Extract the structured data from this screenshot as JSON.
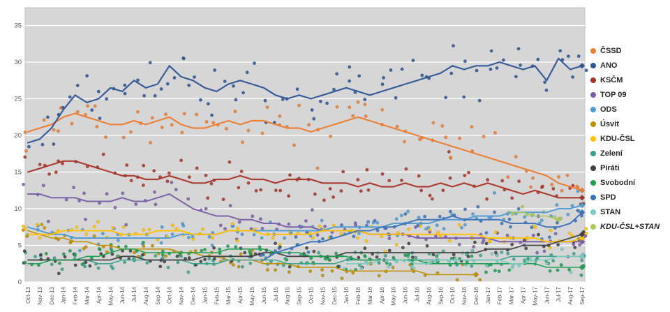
{
  "chart_data": {
    "type": "scatter+line",
    "title": "",
    "xlabel": "",
    "ylabel": "",
    "y_ticks": [
      0,
      5,
      10,
      15,
      20,
      25,
      30,
      35
    ],
    "ylim": [
      0,
      37.4
    ],
    "grid": true,
    "legend_position": "right",
    "plot_bg": "#D6D6D6",
    "grid_color": "#FFFFFF",
    "plot_border": "#C3C3C3",
    "axis_label_color": "#595959",
    "x_labels": [
      "Oct-13",
      "Nov-13",
      "Dec-13",
      "Jan-14",
      "Feb-14",
      "Mar-14",
      "Apr-14",
      "May-14",
      "Jun-14",
      "Jul-14",
      "Aug-14",
      "Sep-14",
      "Oct-14",
      "Nov-14",
      "Dec-14",
      "Jan-15",
      "Feb-15",
      "Mar-15",
      "Apr-15",
      "May-15",
      "Jun-15",
      "Jul-15",
      "Aug-15",
      "Sep-15",
      "Oct-15",
      "Nov-15",
      "Dec-15",
      "Jan-16",
      "Feb-16",
      "Mar-16",
      "Apr-16",
      "May-16",
      "Jun-16",
      "Jul-16",
      "Aug-16",
      "Sep-16",
      "Oct-16",
      "Nov-16",
      "Dec-16",
      "Jan-17",
      "Feb-17",
      "Mar-17",
      "Apr-17",
      "May-17",
      "Jun-17",
      "Jul-17",
      "Aug-17",
      "Sep-17"
    ],
    "series": [
      {
        "name": "ČSSD",
        "color": "#ED7D31",
        "width": 2.2,
        "spread": 2.0,
        "italic": false,
        "values": [
          20.5,
          21,
          21.5,
          22.5,
          23,
          22.5,
          22,
          21.5,
          21.5,
          22,
          21.5,
          22,
          22.5,
          21.5,
          21,
          21,
          21.5,
          22,
          21.5,
          22,
          22,
          21.5,
          21,
          21,
          20.5,
          21,
          21.5,
          22,
          22.5,
          22,
          21.5,
          21,
          20.5,
          20,
          19.5,
          19,
          18.5,
          18,
          17.5,
          17,
          16.5,
          16,
          15.5,
          15,
          14.5,
          13.5,
          13,
          12.5
        ]
      },
      {
        "name": "ANO",
        "color": "#2F5597",
        "width": 2.2,
        "spread": 2.5,
        "italic": false,
        "values": [
          19,
          19.5,
          21,
          23.5,
          25.5,
          24.5,
          25,
          26.5,
          26,
          27.5,
          26.5,
          27,
          29.5,
          28,
          27.5,
          26.5,
          26,
          27,
          27.5,
          27,
          26.5,
          25.5,
          25,
          25.5,
          25,
          25.5,
          26,
          26.5,
          26,
          25.5,
          26,
          26.5,
          27,
          27.5,
          28,
          28.5,
          29.5,
          29,
          29.5,
          29.5,
          30,
          29.5,
          29,
          29.5,
          27.5,
          30.5,
          29,
          29.5
        ]
      },
      {
        "name": "KSČM",
        "color": "#A93529",
        "width": 2.2,
        "spread": 1.8,
        "italic": false,
        "values": [
          15,
          15.5,
          16,
          16.5,
          16.5,
          16,
          15.5,
          15,
          14.5,
          14.5,
          14,
          14,
          14.5,
          14,
          13.5,
          13.5,
          14,
          14,
          14.5,
          14,
          14,
          13.5,
          14,
          14,
          14,
          13.5,
          13.5,
          13.5,
          13,
          13.5,
          13,
          13,
          13.5,
          13,
          13,
          13.5,
          13,
          13.5,
          13,
          13.5,
          13,
          12.5,
          12,
          12.5,
          12,
          11.5,
          11.5,
          11.5
        ]
      },
      {
        "name": "TOP 09",
        "color": "#7B5EA7",
        "width": 2.0,
        "spread": 1.4,
        "italic": false,
        "values": [
          12,
          12,
          11.5,
          11.5,
          11.5,
          11,
          11,
          11,
          11.5,
          11,
          11,
          11.5,
          12,
          11,
          10,
          9.5,
          9,
          9,
          8.5,
          8.5,
          8,
          8,
          7.5,
          7.5,
          7.5,
          7,
          7,
          7,
          7,
          6.5,
          6.5,
          6.5,
          6.5,
          6,
          6,
          6,
          6,
          6,
          6,
          6,
          5.5,
          5.5,
          5.5,
          5.5,
          5.5,
          5.5,
          5.5,
          5.5
        ]
      },
      {
        "name": "ODS",
        "color": "#4E9BD4",
        "width": 2.0,
        "spread": 1.2,
        "italic": false,
        "values": [
          7.5,
          7,
          6.5,
          6.5,
          6,
          6,
          6,
          6,
          6,
          6,
          6,
          6,
          6,
          6.5,
          6.5,
          6.5,
          6.5,
          7,
          7,
          7,
          7,
          7,
          7,
          7,
          7,
          7,
          7.5,
          7.5,
          7.5,
          7.5,
          7.5,
          8,
          8,
          8,
          8,
          8.5,
          8.5,
          8.5,
          9,
          9,
          9,
          9.5,
          9.5,
          9.5,
          9.5,
          10,
          10,
          10.5
        ]
      },
      {
        "name": "Úsvit",
        "color": "#BF8F00",
        "width": 1.6,
        "spread": 1.0,
        "italic": false,
        "values": [
          7,
          6.5,
          6,
          6,
          5.5,
          5.5,
          5,
          5,
          4.5,
          4.5,
          4.5,
          4.5,
          4.5,
          4,
          4,
          3.5,
          3.5,
          3,
          3,
          3,
          2.5,
          2.5,
          2.5,
          2,
          2,
          2,
          2,
          1.5,
          1.5,
          1.5,
          1.5,
          1.5,
          1.5,
          1.5,
          1,
          1,
          1,
          1,
          1,
          null,
          null,
          null,
          null,
          null,
          null,
          null,
          null,
          null
        ]
      },
      {
        "name": "KDU-ČSL",
        "color": "#FFC000",
        "width": 2.0,
        "spread": 1.0,
        "italic": false,
        "values": [
          6.5,
          6.5,
          6.5,
          7,
          7,
          7,
          7,
          7,
          6.5,
          6.5,
          6.5,
          7,
          7,
          7,
          6.5,
          6.5,
          6.5,
          7,
          7,
          7,
          6.5,
          6.5,
          6.5,
          6.5,
          6.5,
          7,
          7,
          7,
          7,
          6.5,
          6.5,
          6.5,
          6.5,
          6.5,
          6.5,
          6.5,
          6.5,
          6.5,
          6.5,
          6,
          6,
          6,
          6,
          6,
          5.5,
          5.5,
          5.5,
          6
        ]
      },
      {
        "name": "Zelení",
        "color": "#3AA38D",
        "width": 1.6,
        "spread": 0.8,
        "italic": false,
        "values": [
          3,
          3,
          3,
          3,
          3,
          3,
          2.5,
          2.5,
          3,
          3,
          3,
          3,
          3,
          3,
          2.5,
          2.5,
          2.5,
          3,
          3,
          3,
          3,
          3,
          2.5,
          2.5,
          2.5,
          2.5,
          2.5,
          3,
          3,
          3,
          3,
          3,
          3,
          3,
          3,
          3,
          3,
          3,
          3,
          3,
          3,
          3.5,
          3.5,
          3.5,
          3.5,
          3.5,
          3.5,
          3.5
        ]
      },
      {
        "name": "Piráti",
        "color": "#404040",
        "width": 1.8,
        "spread": 1.0,
        "italic": false,
        "values": [
          3,
          3,
          3,
          3,
          3,
          3,
          3,
          3,
          3.5,
          3.5,
          3,
          3,
          3,
          3,
          3,
          3.5,
          3.5,
          3.5,
          3.5,
          3.5,
          4,
          4,
          3.5,
          3.5,
          3.5,
          3.5,
          3.5,
          4,
          4,
          4,
          4,
          4,
          4,
          4,
          4,
          4,
          4,
          4,
          4,
          4.5,
          4.5,
          4.5,
          5,
          5,
          5,
          5.5,
          6,
          6.5
        ]
      },
      {
        "name": "Svobodní",
        "color": "#1E9E50",
        "width": 1.6,
        "spread": 0.9,
        "italic": false,
        "values": [
          2.5,
          2.5,
          3,
          3,
          3,
          3.5,
          3.5,
          4,
          4.5,
          4.5,
          4,
          4,
          4,
          4,
          4,
          4,
          4,
          4.5,
          4.5,
          4.5,
          4.5,
          4,
          4,
          4,
          3.5,
          3.5,
          3.5,
          3.5,
          3,
          3,
          3,
          3,
          3,
          3,
          2.5,
          2.5,
          2.5,
          2.5,
          2.5,
          2.5,
          2.5,
          2.5,
          2.5,
          2.5,
          2,
          2,
          2,
          2
        ]
      },
      {
        "name": "SPD",
        "color": "#3B73B9",
        "width": 2.0,
        "spread": 1.3,
        "italic": false,
        "values": [
          null,
          null,
          null,
          null,
          null,
          null,
          null,
          null,
          null,
          null,
          null,
          null,
          null,
          null,
          null,
          null,
          null,
          null,
          null,
          null,
          3,
          4,
          4.5,
          5,
          5.5,
          5.5,
          6,
          6.5,
          7,
          7,
          7.5,
          7.5,
          8,
          8.5,
          8.5,
          8.5,
          9,
          8.5,
          8.5,
          8.5,
          8.5,
          8,
          8,
          8,
          7.5,
          7.5,
          8,
          9.5
        ]
      },
      {
        "name": "STAN",
        "color": "#7BCBC4",
        "width": 1.6,
        "spread": 0.8,
        "italic": false,
        "values": [
          null,
          null,
          null,
          null,
          null,
          null,
          null,
          null,
          null,
          null,
          null,
          null,
          null,
          null,
          null,
          null,
          null,
          null,
          null,
          null,
          null,
          null,
          null,
          null,
          null,
          null,
          null,
          2.5,
          2.5,
          2.5,
          3,
          3,
          3,
          2.5,
          2.5,
          3,
          3,
          3,
          3,
          3,
          3,
          2.5,
          2.5,
          3,
          3,
          3.5,
          3.5,
          3.5
        ]
      },
      {
        "name": "KDU-ČSL+STAN",
        "color": "#A9C95A",
        "width": 1.6,
        "spread": 0.8,
        "italic": true,
        "values": [
          null,
          null,
          null,
          null,
          null,
          null,
          null,
          null,
          null,
          null,
          null,
          null,
          null,
          null,
          null,
          null,
          null,
          null,
          null,
          null,
          null,
          null,
          null,
          null,
          null,
          null,
          null,
          null,
          null,
          null,
          null,
          null,
          null,
          null,
          null,
          null,
          null,
          null,
          null,
          null,
          null,
          9.5,
          9.5,
          9,
          9,
          8.5,
          null,
          null
        ]
      }
    ]
  }
}
